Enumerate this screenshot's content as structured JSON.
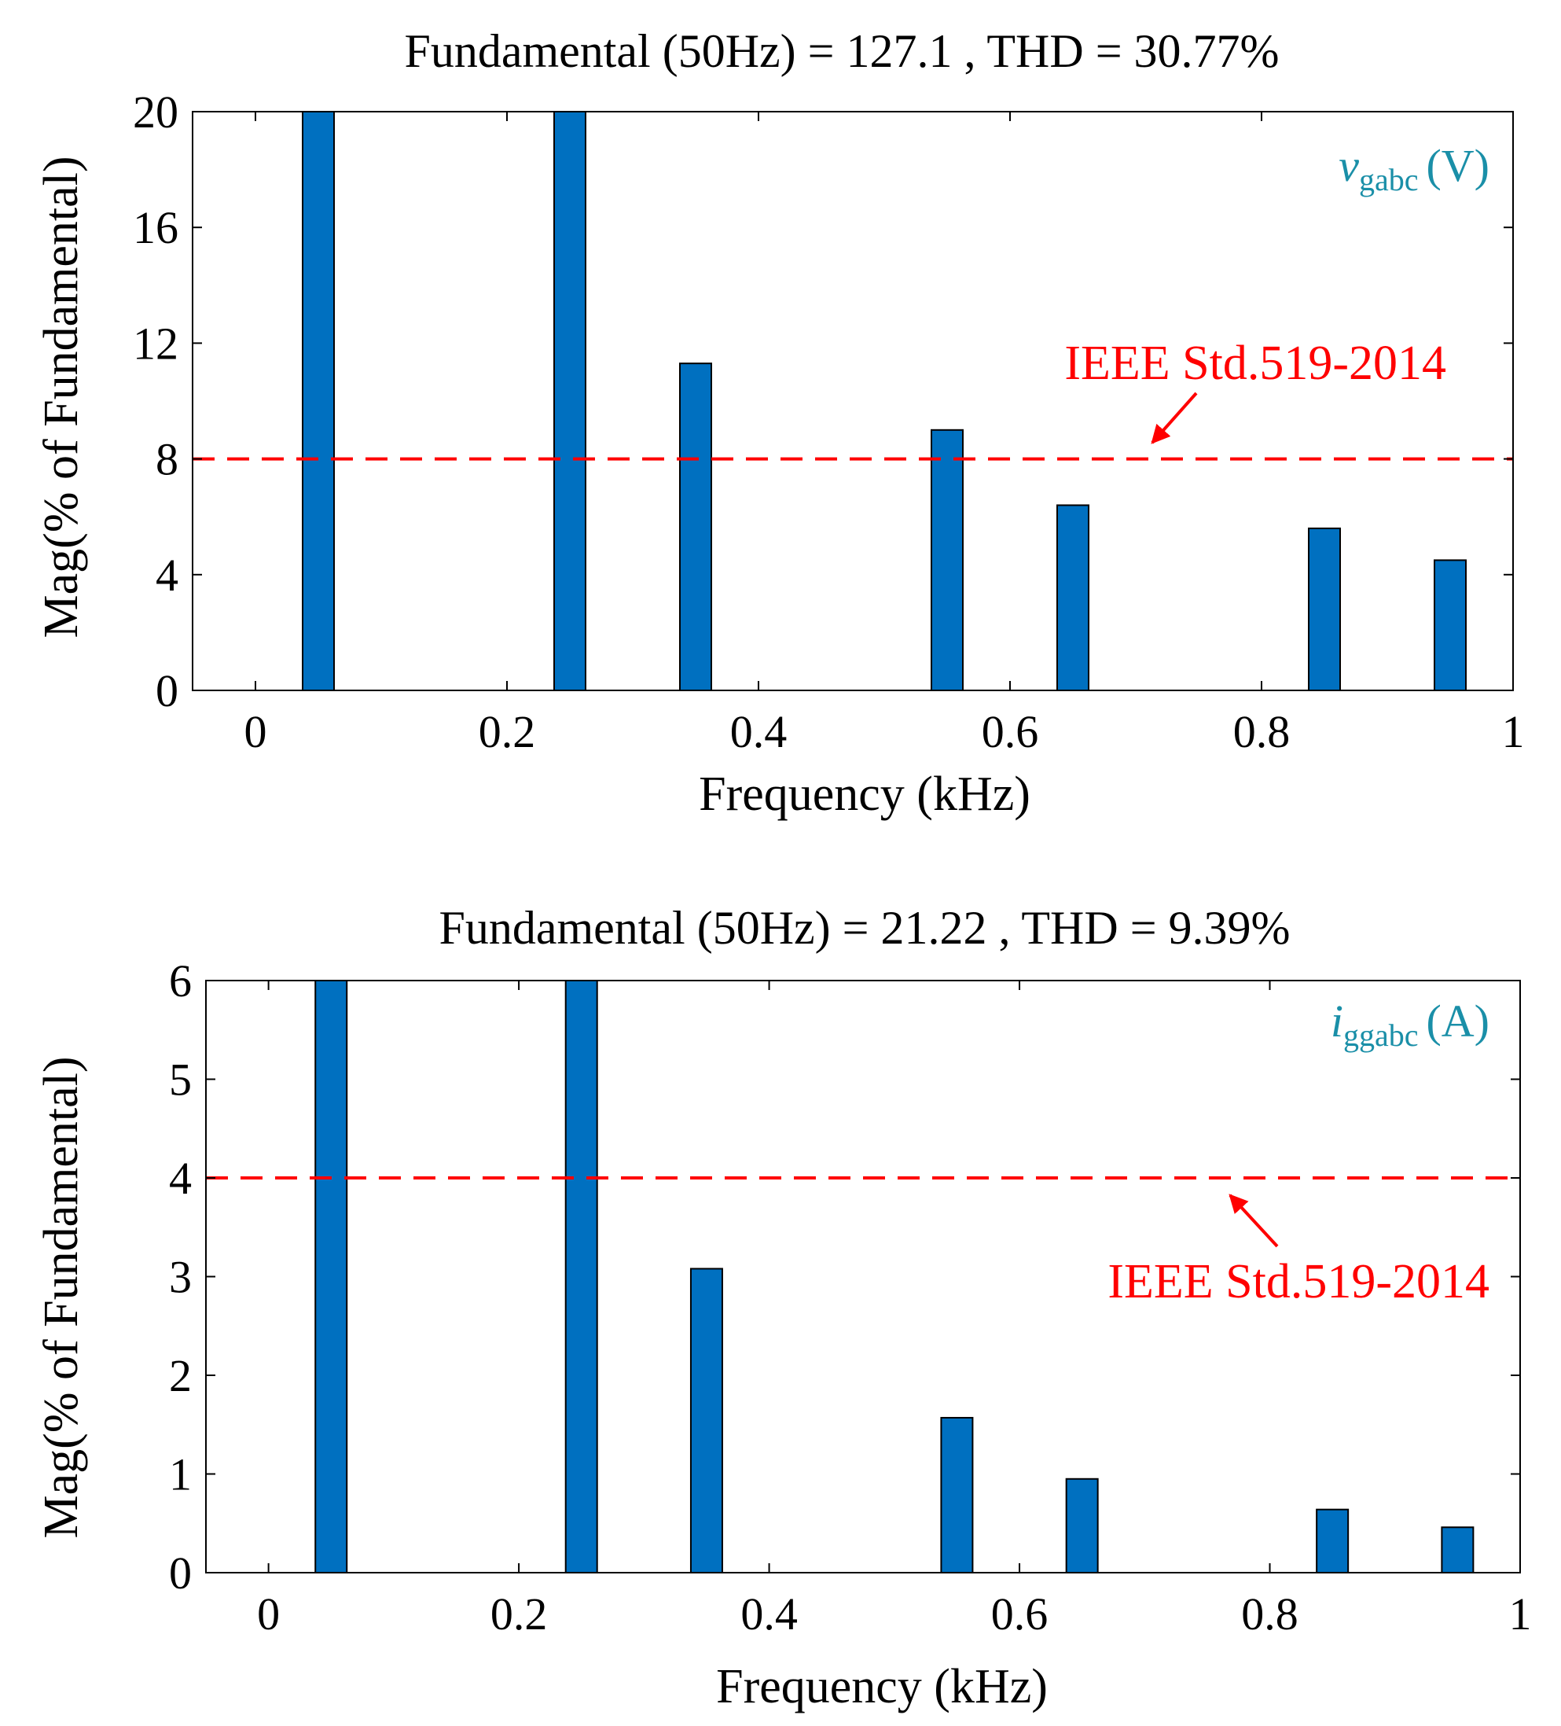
{
  "chart_data": [
    {
      "type": "bar",
      "title": "Fundamental (50Hz) = 127.1 , THD = 30.77%",
      "xlabel": "Frequency (kHz)",
      "ylabel": "Mag(% of Fundamental)",
      "xlim": [
        -0.05,
        1
      ],
      "ylim": [
        0,
        20
      ],
      "xticks": [
        0,
        0.2,
        0.4,
        0.6,
        0.8,
        1
      ],
      "xtick_labels": [
        "0",
        "0.2",
        "0.4",
        "0.6",
        "0.8",
        "1"
      ],
      "yticks": [
        0,
        4,
        8,
        12,
        16,
        20
      ],
      "ytick_labels": [
        "0",
        "4",
        "8",
        "12",
        "16",
        "20"
      ],
      "x": [
        0.05,
        0.25,
        0.35,
        0.55,
        0.65,
        0.85,
        0.95
      ],
      "values": [
        20,
        20,
        11.3,
        9.0,
        6.4,
        5.6,
        4.5
      ],
      "bar_color": "#0070c0",
      "legend": {
        "symbol": "v",
        "subscript": "gabc",
        "unit": "(V)",
        "color": "#1a8fa8",
        "position": "top-right"
      },
      "limit_line": {
        "value": 8,
        "label": "IEEE Std.519-2014",
        "color": "#ff0000",
        "style": "dashed"
      }
    },
    {
      "type": "bar",
      "title": "Fundamental (50Hz) = 21.22 , THD = 9.39%",
      "xlabel": "Frequency (kHz)",
      "ylabel": "Mag(% of Fundamental)",
      "xlim": [
        -0.05,
        1
      ],
      "ylim": [
        0,
        6
      ],
      "xticks": [
        0,
        0.2,
        0.4,
        0.6,
        0.8,
        1
      ],
      "xtick_labels": [
        "0",
        "0.2",
        "0.4",
        "0.6",
        "0.8",
        "1"
      ],
      "yticks": [
        0,
        1,
        2,
        3,
        4,
        5,
        6
      ],
      "ytick_labels": [
        "0",
        "1",
        "2",
        "3",
        "4",
        "5",
        "6"
      ],
      "x": [
        0.05,
        0.25,
        0.35,
        0.55,
        0.65,
        0.85,
        0.95
      ],
      "values": [
        6,
        6,
        3.08,
        1.57,
        0.95,
        0.64,
        0.46
      ],
      "bar_color": "#0070c0",
      "legend": {
        "symbol": "i",
        "subscript": "ggabc",
        "unit": "(A)",
        "color": "#1a8fa8",
        "position": "top-right"
      },
      "limit_line": {
        "value": 4,
        "label": "IEEE Std.519-2014",
        "color": "#ff0000",
        "style": "dashed"
      }
    }
  ]
}
